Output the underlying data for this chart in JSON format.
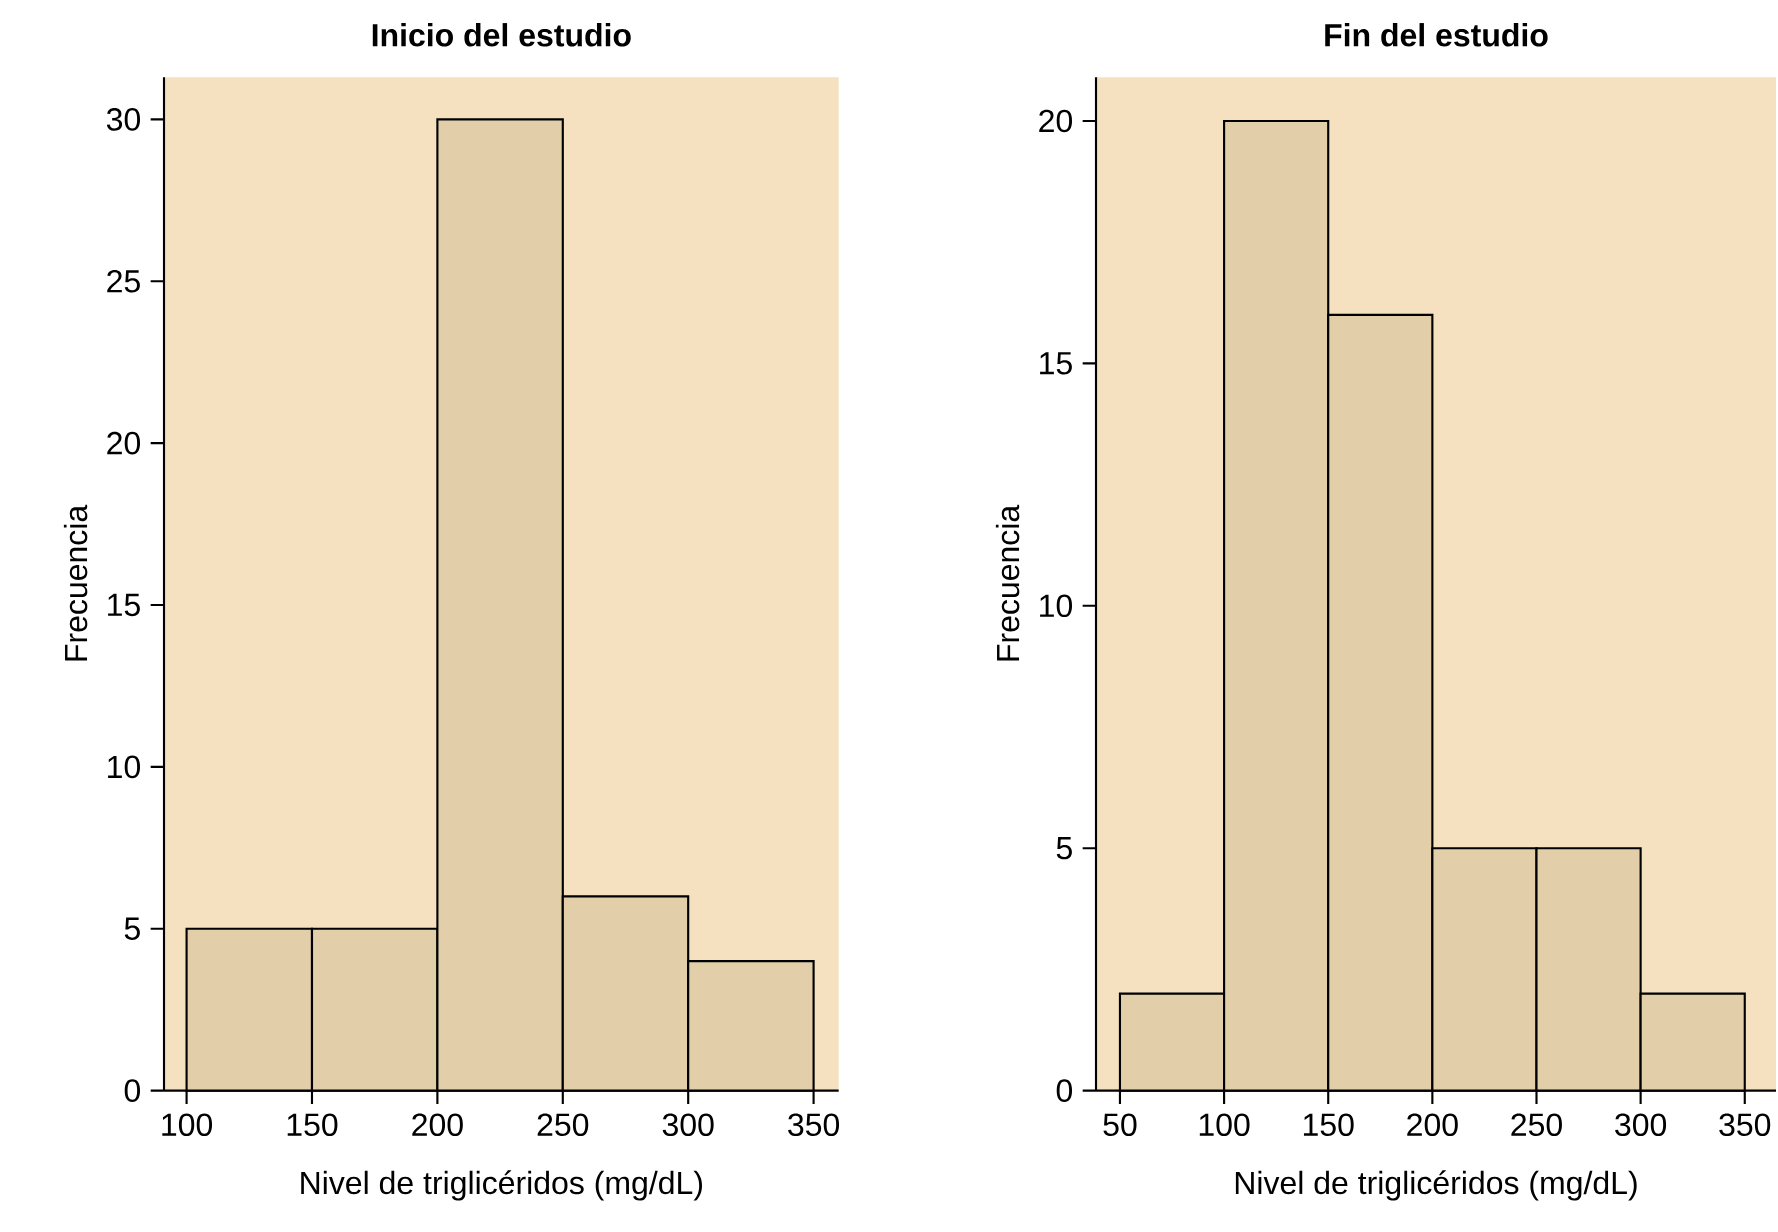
{
  "chart_data": [
    {
      "type": "histogram",
      "title": "Inicio del estudio",
      "xlabel": "Nivel de triglicéridos (mg/dL)",
      "ylabel": "Frecuencia",
      "bins": [
        100,
        150,
        200,
        250,
        300,
        350
      ],
      "values": [
        5,
        5,
        30,
        6,
        4
      ],
      "color": "#e2cfaa",
      "xlim": [
        91,
        360
      ],
      "ylim": [
        0,
        31.3
      ],
      "xticks": [
        100,
        150,
        200,
        250,
        300,
        350
      ],
      "yticks": [
        0,
        5,
        10,
        15,
        20,
        25,
        30
      ]
    },
    {
      "type": "histogram",
      "title": "Fin del estudio",
      "xlabel": "Nivel de triglicéridos (mg/dL)",
      "ylabel": "Frecuencia",
      "bins": [
        50,
        100,
        150,
        200,
        250,
        300,
        350
      ],
      "values": [
        2,
        20,
        16,
        5,
        5,
        2
      ],
      "color": "#e2cfaa",
      "xlim": [
        38.5,
        365
      ],
      "ylim": [
        0,
        20.9
      ],
      "xticks": [
        50,
        100,
        150,
        200,
        250,
        300,
        350
      ],
      "yticks": [
        0,
        5,
        10,
        15,
        20
      ]
    }
  ]
}
